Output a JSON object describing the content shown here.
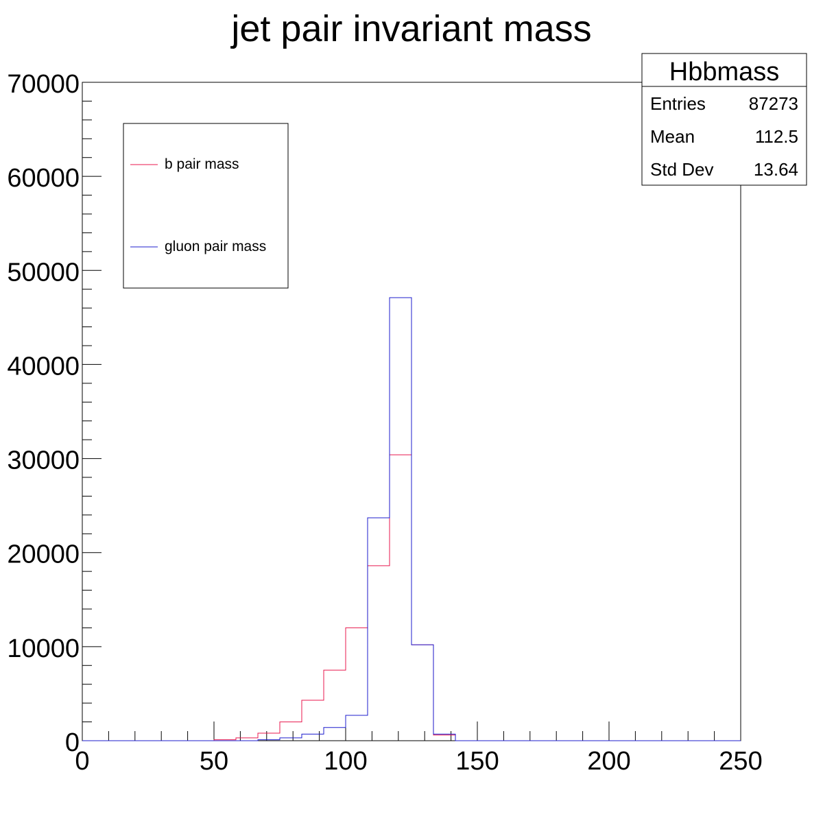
{
  "chart_data": {
    "type": "histogram",
    "title": "jet pair invariant mass",
    "xlabel": "",
    "ylabel": "",
    "xlim": [
      0,
      250
    ],
    "ylim": [
      0,
      70000
    ],
    "x_ticks": [
      0,
      50,
      100,
      150,
      200,
      250
    ],
    "y_ticks": [
      0,
      10000,
      20000,
      30000,
      40000,
      50000,
      60000,
      70000
    ],
    "bin_width": 8.333,
    "grid": false,
    "legend_position": "top-left",
    "series": [
      {
        "name": "b pair mass",
        "color": "#e8174d",
        "bins": [
          {
            "x0": 0,
            "x1": 50,
            "y": 0
          },
          {
            "x0": 50,
            "x1": 58.33,
            "y": 100
          },
          {
            "x0": 58.33,
            "x1": 66.67,
            "y": 300
          },
          {
            "x0": 66.67,
            "x1": 75,
            "y": 800
          },
          {
            "x0": 75,
            "x1": 83.33,
            "y": 2000
          },
          {
            "x0": 83.33,
            "x1": 91.67,
            "y": 4300
          },
          {
            "x0": 91.67,
            "x1": 100,
            "y": 7500
          },
          {
            "x0": 100,
            "x1": 108.33,
            "y": 12000
          },
          {
            "x0": 108.33,
            "x1": 116.67,
            "y": 18600
          },
          {
            "x0": 116.67,
            "x1": 125,
            "y": 30400
          },
          {
            "x0": 125,
            "x1": 133.33,
            "y": 10200
          },
          {
            "x0": 133.33,
            "x1": 141.67,
            "y": 600
          },
          {
            "x0": 141.67,
            "x1": 250,
            "y": 0
          }
        ]
      },
      {
        "name": "gluon pair mass",
        "color": "#1c1ccd",
        "bins": [
          {
            "x0": 0,
            "x1": 66.67,
            "y": 0
          },
          {
            "x0": 66.67,
            "x1": 75,
            "y": 100
          },
          {
            "x0": 75,
            "x1": 83.33,
            "y": 300
          },
          {
            "x0": 83.33,
            "x1": 91.67,
            "y": 700
          },
          {
            "x0": 91.67,
            "x1": 100,
            "y": 1400
          },
          {
            "x0": 100,
            "x1": 108.33,
            "y": 2700
          },
          {
            "x0": 108.33,
            "x1": 116.67,
            "y": 23700
          },
          {
            "x0": 116.67,
            "x1": 125,
            "y": 47100
          },
          {
            "x0": 125,
            "x1": 133.33,
            "y": 10200
          },
          {
            "x0": 133.33,
            "x1": 141.67,
            "y": 700
          },
          {
            "x0": 141.67,
            "x1": 250,
            "y": 0
          }
        ]
      }
    ],
    "stats_box": {
      "title": "Hbbmass",
      "rows": [
        {
          "label": "Entries",
          "value": "87273"
        },
        {
          "label": "Mean",
          "value": "112.5"
        },
        {
          "label": "Std Dev",
          "value": "13.64"
        }
      ]
    }
  }
}
